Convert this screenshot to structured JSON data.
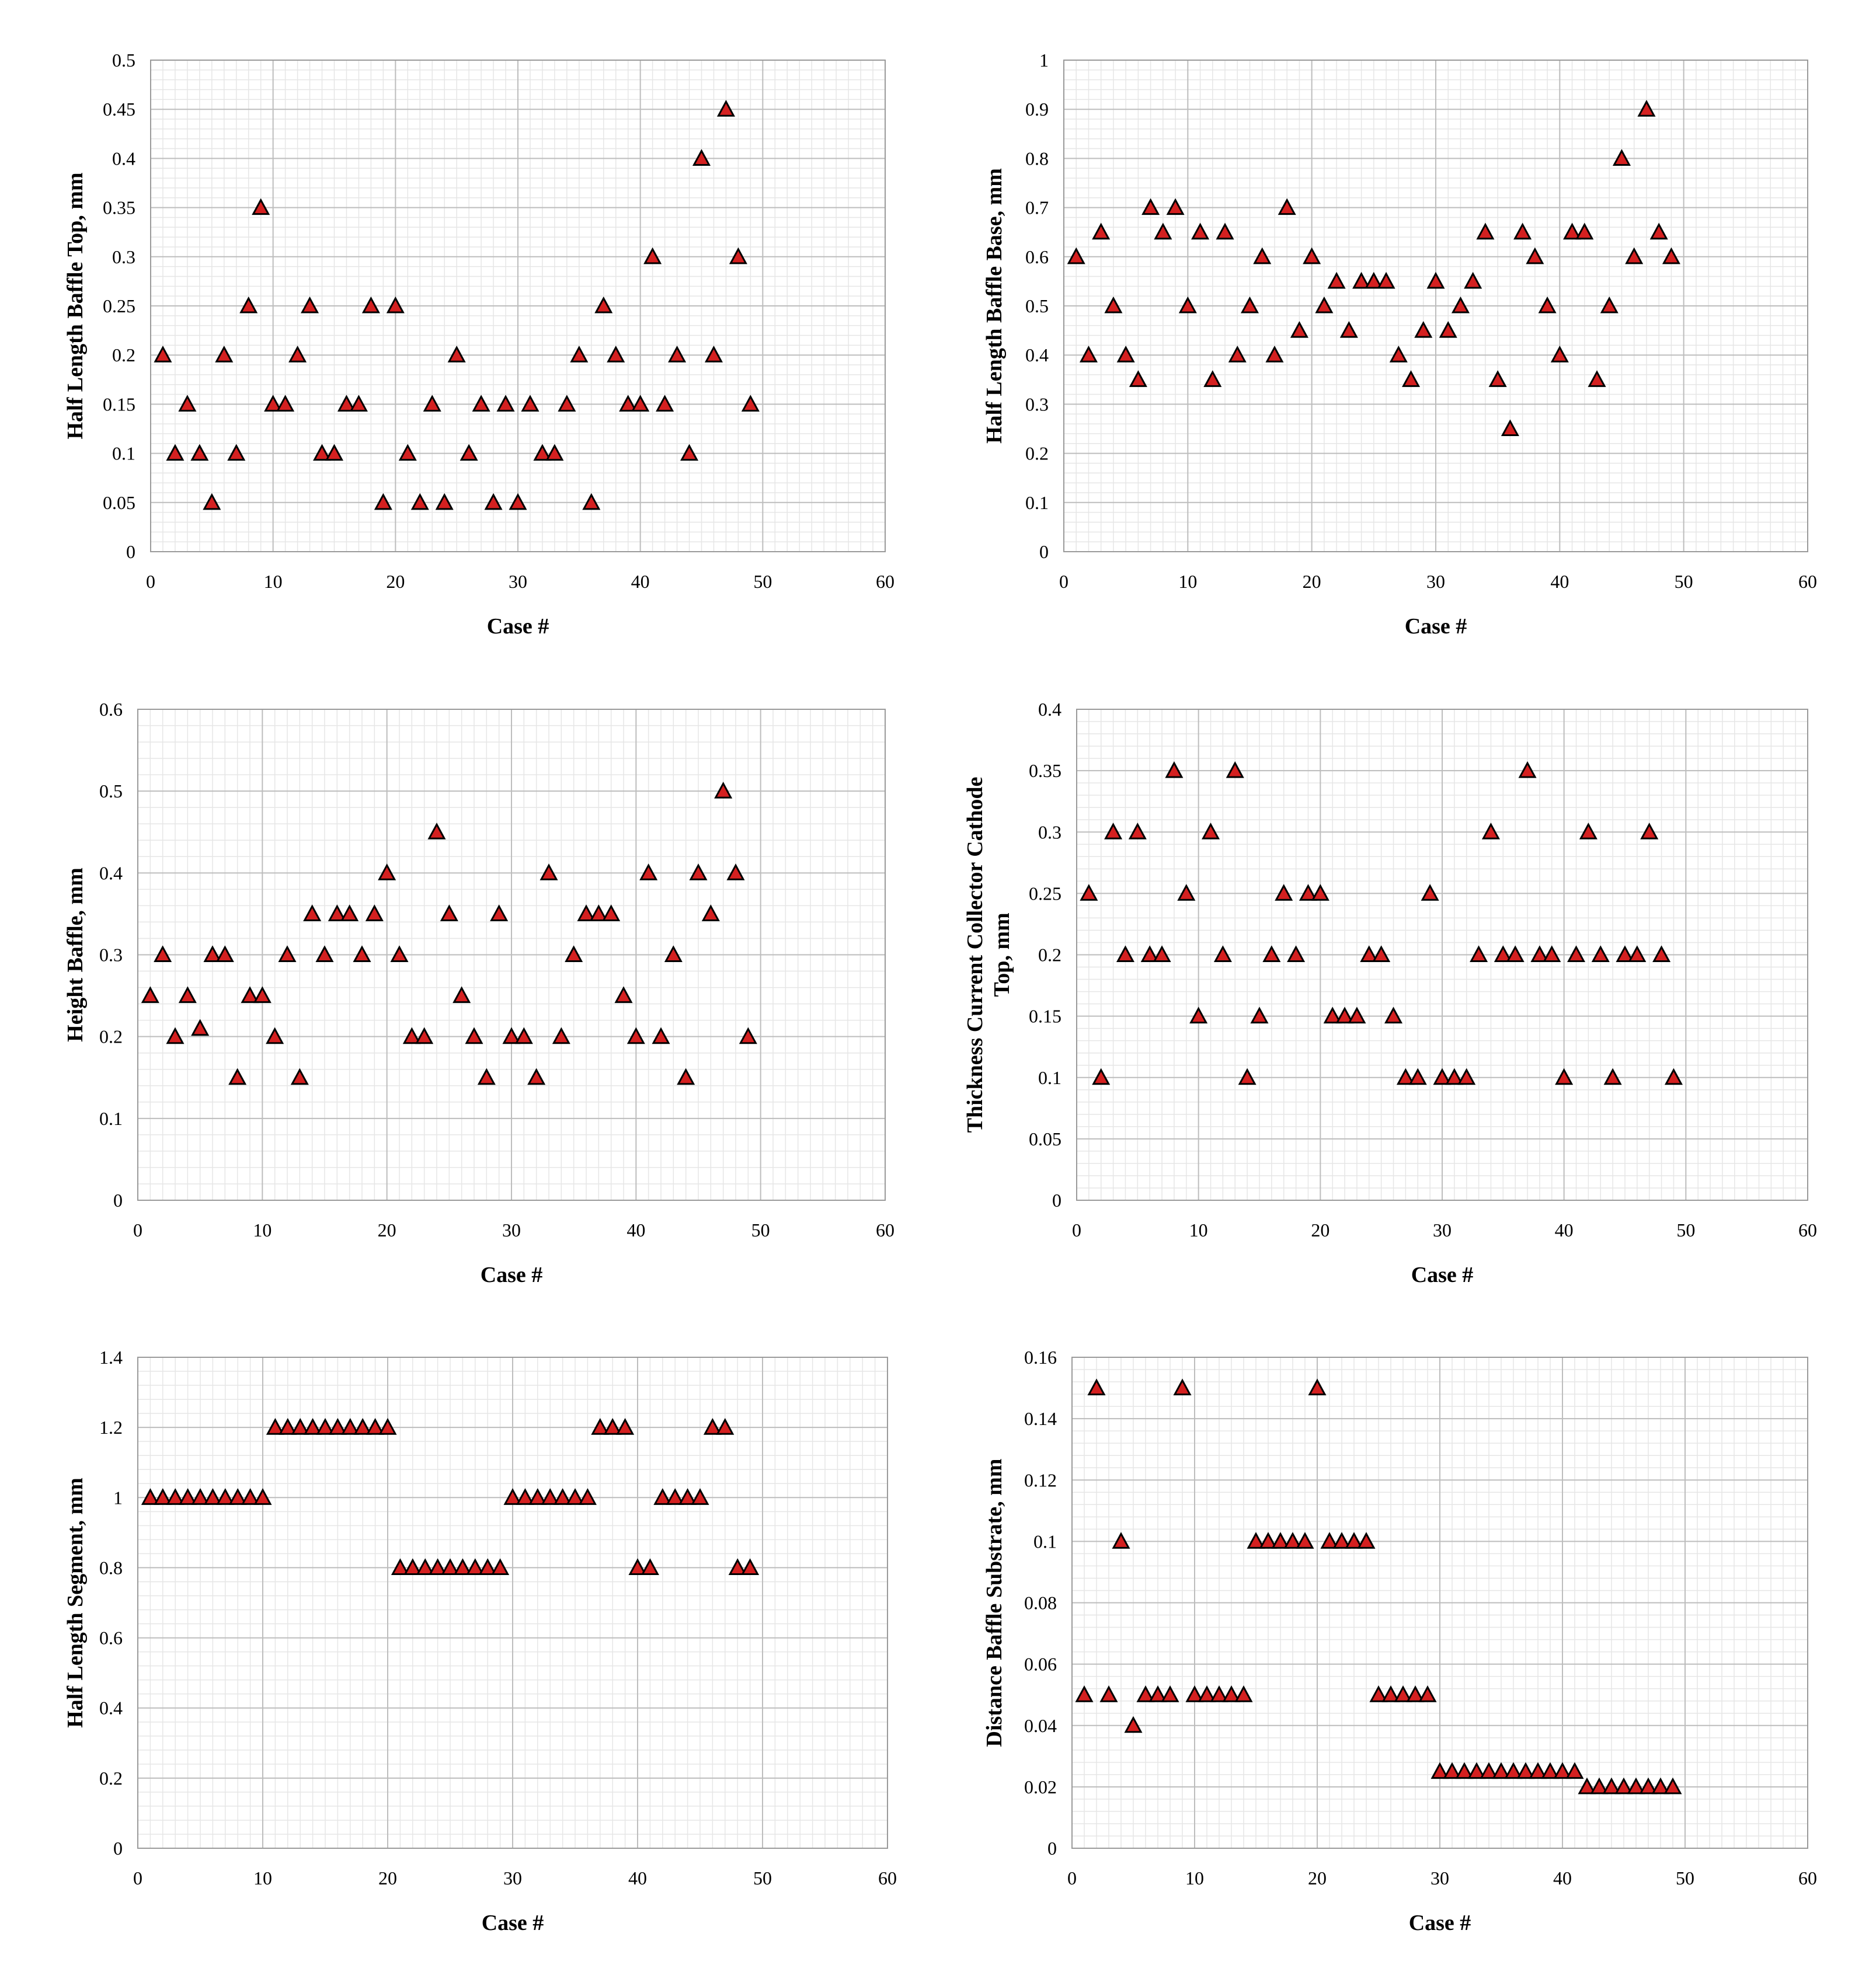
{
  "chart_data": [
    {
      "type": "scatter",
      "xlabel": "Case #",
      "ylabel": [
        "Half Length Baffle Top, mm"
      ],
      "xlim": [
        0,
        60
      ],
      "ylim": [
        0,
        0.5
      ],
      "xticks": [
        "0",
        "10",
        "20",
        "30",
        "40",
        "50",
        "60"
      ],
      "yticks": [
        "0",
        "0.05",
        "0.1",
        "0.15",
        "0.2",
        "0.25",
        "0.3",
        "0.35",
        "0.4",
        "0.45",
        "0.5"
      ],
      "marker": "triangle",
      "marker_color": "#d42020",
      "x": [
        1,
        2,
        3,
        4,
        5,
        6,
        7,
        8,
        9,
        10,
        11,
        12,
        13,
        14,
        15,
        16,
        17,
        18,
        19,
        20,
        21,
        22,
        23,
        24,
        25,
        26,
        27,
        28,
        29,
        30,
        31,
        32,
        33,
        34,
        35,
        36,
        37,
        38,
        39,
        40,
        41,
        42,
        43,
        44,
        45,
        46,
        47,
        48,
        49
      ],
      "y": [
        0.2,
        0.1,
        0.15,
        0.1,
        0.05,
        0.2,
        0.1,
        0.25,
        0.35,
        0.15,
        0.15,
        0.2,
        0.25,
        0.1,
        0.1,
        0.15,
        0.15,
        0.25,
        0.05,
        0.25,
        0.1,
        0.05,
        0.15,
        0.05,
        0.2,
        0.1,
        0.15,
        0.05,
        0.15,
        0.05,
        0.15,
        0.1,
        0.1,
        0.15,
        0.2,
        0.05,
        0.25,
        0.2,
        0.15,
        0.15,
        0.3,
        0.15,
        0.2,
        0.1,
        0.4,
        0.2,
        0.45,
        0.3,
        0.15
      ]
    },
    {
      "type": "scatter",
      "xlabel": "Case #",
      "ylabel": [
        "Half Length Baffle Base, mm"
      ],
      "xlim": [
        0,
        60
      ],
      "ylim": [
        0,
        1
      ],
      "xticks": [
        "0",
        "10",
        "20",
        "30",
        "40",
        "50",
        "60"
      ],
      "yticks": [
        "0",
        "0.1",
        "0.2",
        "0.3",
        "0.4",
        "0.5",
        "0.6",
        "0.7",
        "0.8",
        "0.9",
        "1"
      ],
      "marker": "triangle",
      "marker_color": "#d42020",
      "x": [
        1,
        2,
        3,
        4,
        5,
        6,
        7,
        8,
        9,
        10,
        11,
        12,
        13,
        14,
        15,
        16,
        17,
        18,
        19,
        20,
        21,
        22,
        23,
        24,
        25,
        26,
        27,
        28,
        29,
        30,
        31,
        32,
        33,
        34,
        35,
        36,
        37,
        38,
        39,
        40,
        41,
        42,
        43,
        44,
        45,
        46,
        47,
        48,
        49
      ],
      "y": [
        0.6,
        0.4,
        0.65,
        0.5,
        0.4,
        0.35,
        0.7,
        0.65,
        0.7,
        0.5,
        0.65,
        0.35,
        0.65,
        0.4,
        0.5,
        0.6,
        0.4,
        0.7,
        0.45,
        0.6,
        0.5,
        0.55,
        0.45,
        0.55,
        0.55,
        0.55,
        0.4,
        0.35,
        0.45,
        0.55,
        0.45,
        0.5,
        0.55,
        0.65,
        0.35,
        0.25,
        0.65,
        0.6,
        0.5,
        0.4,
        0.65,
        0.65,
        0.35,
        0.5,
        0.8,
        0.6,
        0.9,
        0.65,
        0.6
      ]
    },
    {
      "type": "scatter",
      "xlabel": "Case #",
      "ylabel": [
        "Height Baffle, mm"
      ],
      "xlim": [
        0,
        60
      ],
      "ylim": [
        0,
        0.6
      ],
      "xticks": [
        "0",
        "10",
        "20",
        "30",
        "40",
        "50",
        "60"
      ],
      "yticks": [
        "0",
        "0.1",
        "0.2",
        "0.3",
        "0.4",
        "0.5",
        "0.6"
      ],
      "marker": "triangle",
      "marker_color": "#d42020",
      "x": [
        1,
        2,
        3,
        4,
        5,
        6,
        7,
        8,
        9,
        10,
        11,
        12,
        13,
        14,
        15,
        16,
        17,
        18,
        19,
        20,
        21,
        22,
        23,
        24,
        25,
        26,
        27,
        28,
        29,
        30,
        31,
        32,
        33,
        34,
        35,
        36,
        37,
        38,
        39,
        40,
        41,
        42,
        43,
        44,
        45,
        46,
        47,
        48,
        49
      ],
      "y": [
        0.25,
        0.3,
        0.2,
        0.25,
        0.21,
        0.3,
        0.3,
        0.15,
        0.25,
        0.25,
        0.2,
        0.3,
        0.15,
        0.35,
        0.3,
        0.35,
        0.35,
        0.3,
        0.35,
        0.4,
        0.3,
        0.2,
        0.2,
        0.45,
        0.35,
        0.25,
        0.2,
        0.15,
        0.35,
        0.2,
        0.2,
        0.15,
        0.4,
        0.2,
        0.3,
        0.35,
        0.35,
        0.35,
        0.25,
        0.2,
        0.4,
        0.2,
        0.3,
        0.15,
        0.4,
        0.35,
        0.5,
        0.4,
        0.2
      ]
    },
    {
      "type": "scatter",
      "xlabel": "Case #",
      "ylabel": [
        "Thickness Current Collector Cathode",
        "Top, mm"
      ],
      "xlim": [
        0,
        60
      ],
      "ylim": [
        0,
        0.4
      ],
      "xticks": [
        "0",
        "10",
        "20",
        "30",
        "40",
        "50",
        "60"
      ],
      "yticks": [
        "0",
        "0.05",
        "0.1",
        "0.15",
        "0.2",
        "0.25",
        "0.3",
        "0.35",
        "0.4"
      ],
      "marker": "triangle",
      "marker_color": "#d42020",
      "x": [
        1,
        2,
        3,
        4,
        5,
        6,
        7,
        8,
        9,
        10,
        11,
        12,
        13,
        14,
        15,
        16,
        17,
        18,
        19,
        20,
        21,
        22,
        23,
        24,
        25,
        26,
        27,
        28,
        29,
        30,
        31,
        32,
        33,
        34,
        35,
        36,
        37,
        38,
        39,
        40,
        41,
        42,
        43,
        44,
        45,
        46,
        47,
        48,
        49
      ],
      "y": [
        0.25,
        0.1,
        0.3,
        0.2,
        0.3,
        0.2,
        0.2,
        0.35,
        0.25,
        0.15,
        0.3,
        0.2,
        0.35,
        0.1,
        0.15,
        0.2,
        0.25,
        0.2,
        0.25,
        0.25,
        0.15,
        0.15,
        0.15,
        0.2,
        0.2,
        0.15,
        0.1,
        0.1,
        0.25,
        0.1,
        0.1,
        0.1,
        0.2,
        0.3,
        0.2,
        0.2,
        0.35,
        0.2,
        0.2,
        0.1,
        0.2,
        0.3,
        0.2,
        0.1,
        0.2,
        0.2,
        0.3,
        0.2,
        0.1
      ]
    },
    {
      "type": "scatter",
      "xlabel": "Case #",
      "ylabel": [
        "Half Length Segment, mm"
      ],
      "xlim": [
        0,
        60
      ],
      "ylim": [
        0,
        1.4
      ],
      "xticks": [
        "0",
        "10",
        "20",
        "30",
        "40",
        "50",
        "60"
      ],
      "yticks": [
        "0",
        "0.2",
        "0.4",
        "0.6",
        "0.8",
        "1",
        "1.2",
        "1.4"
      ],
      "marker": "triangle",
      "marker_color": "#d42020",
      "x": [
        1,
        2,
        3,
        4,
        5,
        6,
        7,
        8,
        9,
        10,
        11,
        12,
        13,
        14,
        15,
        16,
        17,
        18,
        19,
        20,
        21,
        22,
        23,
        24,
        25,
        26,
        27,
        28,
        29,
        30,
        31,
        32,
        33,
        34,
        35,
        36,
        37,
        38,
        39,
        40,
        41,
        42,
        43,
        44,
        45,
        46,
        47,
        48,
        49
      ],
      "y": [
        1,
        1,
        1,
        1,
        1,
        1,
        1,
        1,
        1,
        1,
        1.2,
        1.2,
        1.2,
        1.2,
        1.2,
        1.2,
        1.2,
        1.2,
        1.2,
        1.2,
        0.8,
        0.8,
        0.8,
        0.8,
        0.8,
        0.8,
        0.8,
        0.8,
        0.8,
        1,
        1,
        1,
        1,
        1,
        1,
        1,
        1.2,
        1.2,
        1.2,
        0.8,
        0.8,
        1,
        1,
        1,
        1,
        1.2,
        1.2,
        0.8,
        0.8
      ]
    },
    {
      "type": "scatter",
      "xlabel": "Case #",
      "ylabel": [
        "Distance Baffle Substrate, mm"
      ],
      "xlim": [
        0,
        60
      ],
      "ylim": [
        0,
        0.16
      ],
      "xticks": [
        "0",
        "10",
        "20",
        "30",
        "40",
        "50",
        "60"
      ],
      "yticks": [
        "0",
        "0.02",
        "0.04",
        "0.06",
        "0.08",
        "0.1",
        "0.12",
        "0.14",
        "0.16"
      ],
      "marker": "triangle",
      "marker_color": "#d42020",
      "x": [
        1,
        2,
        3,
        4,
        5,
        6,
        7,
        8,
        9,
        10,
        11,
        12,
        13,
        14,
        15,
        16,
        17,
        18,
        19,
        20,
        21,
        22,
        23,
        24,
        25,
        26,
        27,
        28,
        29,
        30,
        31,
        32,
        33,
        34,
        35,
        36,
        37,
        38,
        39,
        40,
        41,
        42,
        43,
        44,
        45,
        46,
        47,
        48,
        49
      ],
      "y": [
        0.05,
        0.15,
        0.05,
        0.1,
        0.04,
        0.05,
        0.05,
        0.05,
        0.15,
        0.05,
        0.05,
        0.05,
        0.05,
        0.05,
        0.1,
        0.1,
        0.1,
        0.1,
        0.1,
        0.15,
        0.1,
        0.1,
        0.1,
        0.1,
        0.05,
        0.05,
        0.05,
        0.05,
        0.05,
        0.025,
        0.025,
        0.025,
        0.025,
        0.025,
        0.025,
        0.025,
        0.025,
        0.025,
        0.025,
        0.025,
        0.025,
        0.02,
        0.02,
        0.02,
        0.02,
        0.02,
        0.02,
        0.02,
        0.02
      ]
    }
  ]
}
